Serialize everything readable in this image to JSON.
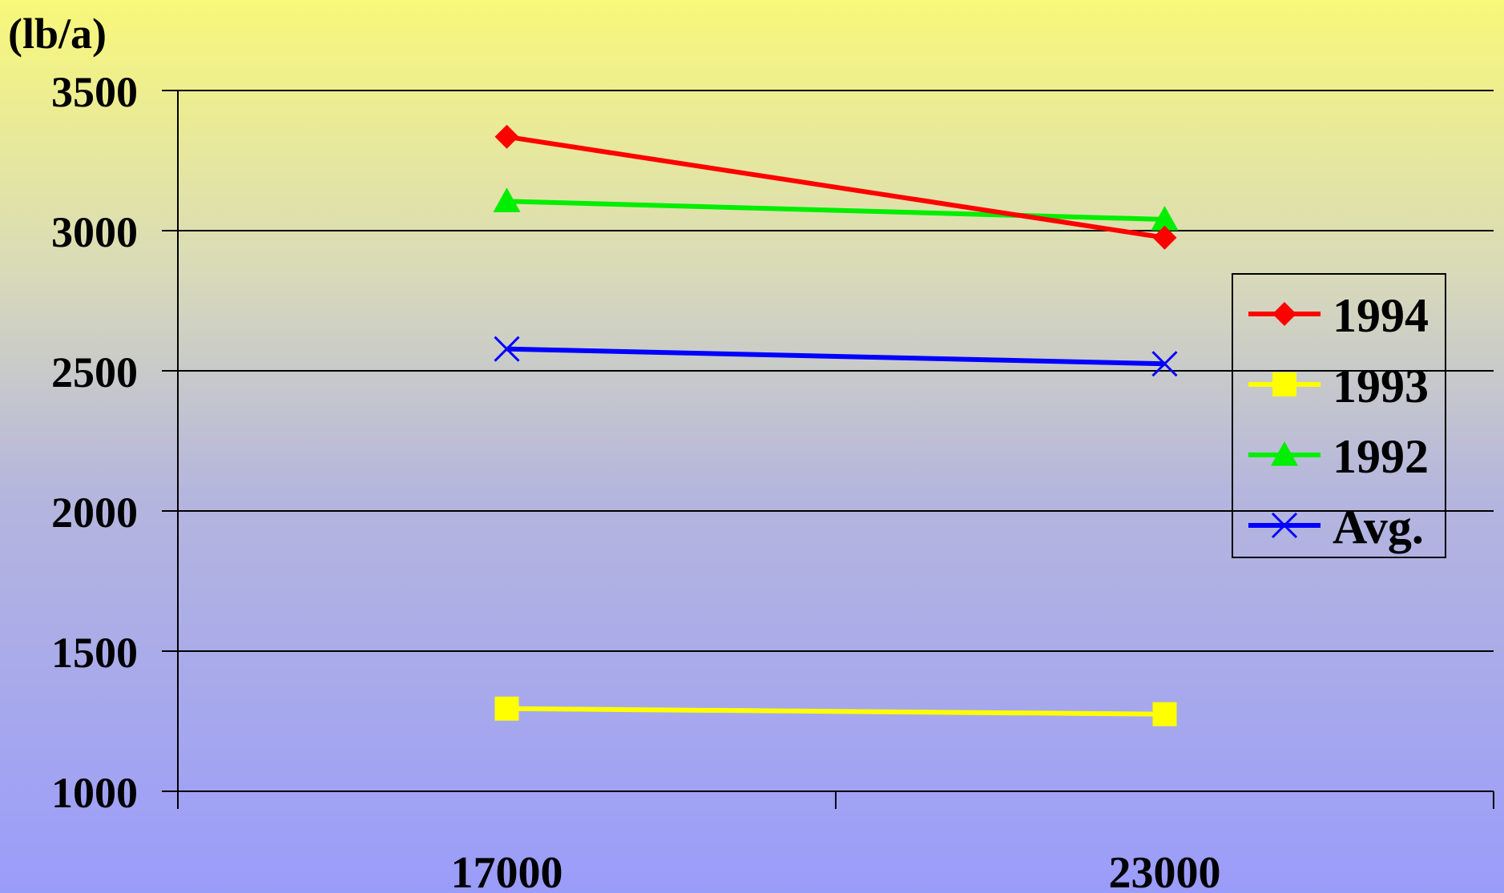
{
  "chart_data": {
    "type": "line",
    "unit_label": "(lb/a)",
    "categories": [
      "17000",
      "23000"
    ],
    "ylim": [
      1000,
      3500
    ],
    "yticks": [
      "3500",
      "3000",
      "2500",
      "2000",
      "1500",
      "1000"
    ],
    "grid": true,
    "legend_position": "right",
    "series": [
      {
        "name": "1994",
        "values": [
          3335,
          2975
        ],
        "color": "#ff0000",
        "marker": "diamond"
      },
      {
        "name": "1993",
        "values": [
          1295,
          1275
        ],
        "color": "#ffff00",
        "marker": "square"
      },
      {
        "name": "1992",
        "values": [
          3105,
          3040
        ],
        "color": "#00ee00",
        "marker": "triangle"
      },
      {
        "name": "Avg.",
        "values": [
          2578,
          2525
        ],
        "color": "#0000ff",
        "marker": "x"
      }
    ]
  }
}
